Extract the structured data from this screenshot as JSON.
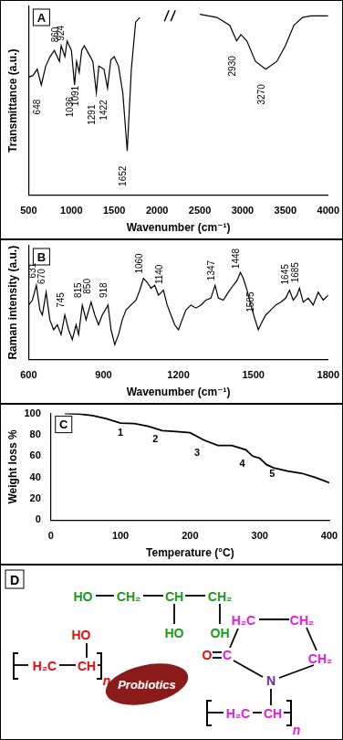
{
  "chart_data": [
    {
      "panel": "A",
      "type": "line",
      "x_label": "Wavenumber (cm⁻¹)",
      "y_label": "Transmittance (a.u.)",
      "color": "#000000",
      "grid": false,
      "tick_labels": "x",
      "xlim": [
        500,
        4000
      ],
      "xticks": [
        500,
        1000,
        1500,
        2000,
        2500,
        3000,
        3500,
        4000
      ],
      "ylim": [
        -20,
        100
      ],
      "x": [
        500,
        550,
        600,
        648,
        700,
        750,
        800,
        860,
        880,
        924,
        950,
        1000,
        1036,
        1060,
        1091,
        1120,
        1150,
        1200,
        1250,
        1291,
        1320,
        1380,
        1422,
        1460,
        1500,
        1550,
        1600,
        1652,
        1700,
        1750,
        1800,
        2150,
        2500,
        2700,
        2850,
        2930,
        2980,
        3050,
        3150,
        3270,
        3400,
        3500,
        3600,
        3700,
        3800,
        4000
      ],
      "values": [
        55,
        56,
        60,
        50,
        62,
        68,
        72,
        65,
        75,
        68,
        78,
        72,
        50,
        65,
        58,
        72,
        75,
        70,
        65,
        45,
        62,
        60,
        48,
        66,
        68,
        62,
        45,
        8,
        60,
        90,
        93,
        null,
        95,
        93,
        88,
        78,
        82,
        78,
        65,
        60,
        65,
        75,
        88,
        93,
        94,
        94
      ],
      "annotations": [
        {
          "x": 648,
          "y": 36,
          "label": "648"
        },
        {
          "x": 860,
          "y": 82,
          "label": "860"
        },
        {
          "x": 924,
          "y": 83,
          "label": "924"
        },
        {
          "x": 1036,
          "y": 36,
          "label": "1036"
        },
        {
          "x": 1091,
          "y": 43,
          "label": "1091"
        },
        {
          "x": 1291,
          "y": 31,
          "label": "1291"
        },
        {
          "x": 1422,
          "y": 34,
          "label": "1422"
        },
        {
          "x": 1652,
          "y": -8,
          "label": "1652"
        },
        {
          "x": 2930,
          "y": 62,
          "label": "2930"
        },
        {
          "x": 3270,
          "y": 44,
          "label": "3270"
        }
      ]
    },
    {
      "panel": "B",
      "type": "line",
      "x_label": "Wavenumber (cm⁻¹)",
      "y_label": "Raman intensity (a.u.)",
      "color": "#000000",
      "grid": false,
      "tick_labels": "x",
      "xlim": [
        600,
        1800
      ],
      "xticks": [
        600,
        900,
        1200,
        1500,
        1800
      ],
      "ylim": [
        0,
        115
      ],
      "x": [
        600,
        615,
        631,
        645,
        655,
        670,
        685,
        700,
        715,
        730,
        745,
        760,
        775,
        790,
        800,
        815,
        830,
        850,
        865,
        880,
        895,
        918,
        930,
        945,
        960,
        975,
        990,
        1010,
        1030,
        1045,
        1060,
        1075,
        1090,
        1105,
        1120,
        1140,
        1155,
        1170,
        1185,
        1200,
        1215,
        1230,
        1250,
        1270,
        1290,
        1310,
        1330,
        1347,
        1360,
        1380,
        1400,
        1420,
        1435,
        1448,
        1460,
        1475,
        1490,
        1505,
        1520,
        1535,
        1550,
        1570,
        1590,
        1610,
        1630,
        1645,
        1660,
        1675,
        1685,
        1700,
        1720,
        1740,
        1760,
        1780,
        1800
      ],
      "values": [
        55,
        60,
        75,
        50,
        45,
        68,
        40,
        30,
        35,
        25,
        45,
        30,
        20,
        35,
        25,
        55,
        40,
        58,
        45,
        35,
        45,
        55,
        30,
        15,
        25,
        40,
        50,
        55,
        60,
        70,
        82,
        78,
        72,
        75,
        65,
        70,
        55,
        45,
        35,
        30,
        40,
        50,
        55,
        52,
        55,
        60,
        62,
        75,
        62,
        60,
        68,
        75,
        80,
        88,
        82,
        70,
        55,
        42,
        30,
        38,
        45,
        50,
        55,
        58,
        62,
        70,
        60,
        65,
        72,
        58,
        62,
        55,
        68,
        60,
        65
      ],
      "annotations": [
        {
          "x": 631,
          "y": 90,
          "label": "631"
        },
        {
          "x": 670,
          "y": 84,
          "label": "670"
        },
        {
          "x": 745,
          "y": 60,
          "label": "745"
        },
        {
          "x": 815,
          "y": 70,
          "label": "815"
        },
        {
          "x": 850,
          "y": 74,
          "label": "850"
        },
        {
          "x": 918,
          "y": 70,
          "label": "918"
        },
        {
          "x": 1060,
          "y": 97,
          "label": "1060"
        },
        {
          "x": 1140,
          "y": 86,
          "label": "1140"
        },
        {
          "x": 1347,
          "y": 90,
          "label": "1347"
        },
        {
          "x": 1448,
          "y": 102,
          "label": "1448"
        },
        {
          "x": 1505,
          "y": 58,
          "label": "1505"
        },
        {
          "x": 1645,
          "y": 86,
          "label": "1645"
        },
        {
          "x": 1685,
          "y": 88,
          "label": "1685"
        }
      ]
    },
    {
      "panel": "C",
      "type": "line",
      "x_label": "Temperature (°C)",
      "y_label": "Weight loss %",
      "color": "#000000",
      "grid": false,
      "xlim": [
        0,
        400
      ],
      "xticks": [
        0,
        100,
        200,
        300,
        400
      ],
      "ylim": [
        0,
        100
      ],
      "yticks": [
        0,
        20,
        40,
        60,
        80,
        100
      ],
      "x": [
        20,
        40,
        60,
        80,
        100,
        120,
        140,
        160,
        180,
        200,
        220,
        240,
        260,
        280,
        290,
        300,
        310,
        320,
        340,
        360,
        380,
        400
      ],
      "values": [
        100,
        99.5,
        98,
        95,
        91,
        90.5,
        88,
        84,
        83,
        82,
        75,
        70,
        70,
        66,
        60,
        58,
        52,
        49,
        46,
        44,
        40,
        35
      ],
      "annotations": [
        {
          "x": 100,
          "y": 82,
          "label": "1"
        },
        {
          "x": 150,
          "y": 76,
          "label": "2"
        },
        {
          "x": 210,
          "y": 63,
          "label": "3"
        },
        {
          "x": 275,
          "y": 53,
          "label": "4"
        },
        {
          "x": 318,
          "y": 43,
          "label": "5"
        }
      ]
    }
  ],
  "diagram": {
    "panel": "D",
    "glycerol": [
      {
        "text": "HO",
        "color": "#1a9a1a"
      },
      {
        "text": "CH₂",
        "color": "#1a9a1a"
      },
      {
        "text": "CH",
        "color": "#1a9a1a"
      },
      {
        "text": "CH₂",
        "color": "#1a9a1a"
      },
      {
        "text": "HO",
        "color": "#1a9a1a"
      },
      {
        "text": "OH",
        "color": "#1a9a1a"
      }
    ],
    "pva": [
      {
        "text": "HO",
        "color": "#e01010"
      },
      {
        "text": "H₂C",
        "color": "#e01010"
      },
      {
        "text": "CH",
        "color": "#e01010"
      },
      {
        "text": "n",
        "color": "#e01010"
      }
    ],
    "probiotics": {
      "text": "Probiotics",
      "color": "#8b1a1a"
    },
    "pvp": [
      {
        "text": "H₂C",
        "color": "#e020e0"
      },
      {
        "text": "CH₂",
        "color": "#e020e0"
      },
      {
        "text": "CH₂",
        "color": "#e020e0"
      },
      {
        "text": "O",
        "color": "#e01010"
      },
      {
        "text": "C",
        "color": "#e020e0"
      },
      {
        "text": "N",
        "color": "#7030a0"
      },
      {
        "text": "H₂C",
        "color": "#e020e0"
      },
      {
        "text": "CH",
        "color": "#e020e0"
      },
      {
        "text": "n",
        "color": "#e020e0"
      }
    ]
  }
}
